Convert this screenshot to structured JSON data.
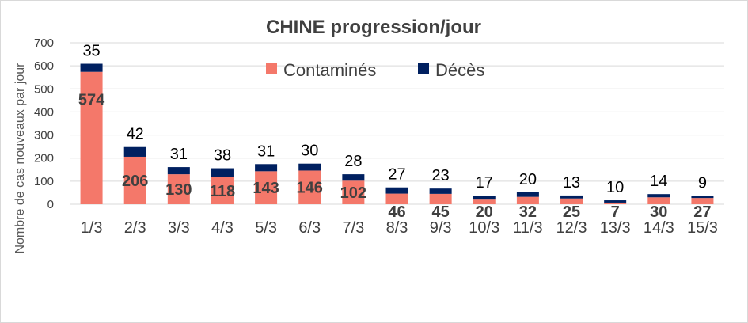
{
  "chart_data": {
    "type": "bar",
    "stacked": true,
    "title": "CHINE progression/jour",
    "xlabel": "",
    "ylabel": "Nombre de cas nouveaux par jour",
    "categories": [
      "1/3",
      "2/3",
      "3/3",
      "4/3",
      "5/3",
      "6/3",
      "7/3",
      "8/3",
      "9/3",
      "10/3",
      "11/3",
      "12/3",
      "13/3",
      "14/3",
      "15/3"
    ],
    "ylim": [
      0,
      700
    ],
    "yticks": [
      0,
      100,
      200,
      300,
      400,
      500,
      600,
      700
    ],
    "grid": true,
    "legend_position": "top",
    "series": [
      {
        "name": "Contaminés",
        "color": "#F4786A",
        "values": [
          574,
          206,
          130,
          118,
          143,
          146,
          102,
          46,
          45,
          20,
          32,
          25,
          7,
          30,
          27
        ]
      },
      {
        "name": "Décès",
        "color": "#002060",
        "values": [
          35,
          42,
          31,
          38,
          31,
          30,
          28,
          27,
          23,
          17,
          20,
          13,
          10,
          14,
          9
        ]
      }
    ]
  }
}
